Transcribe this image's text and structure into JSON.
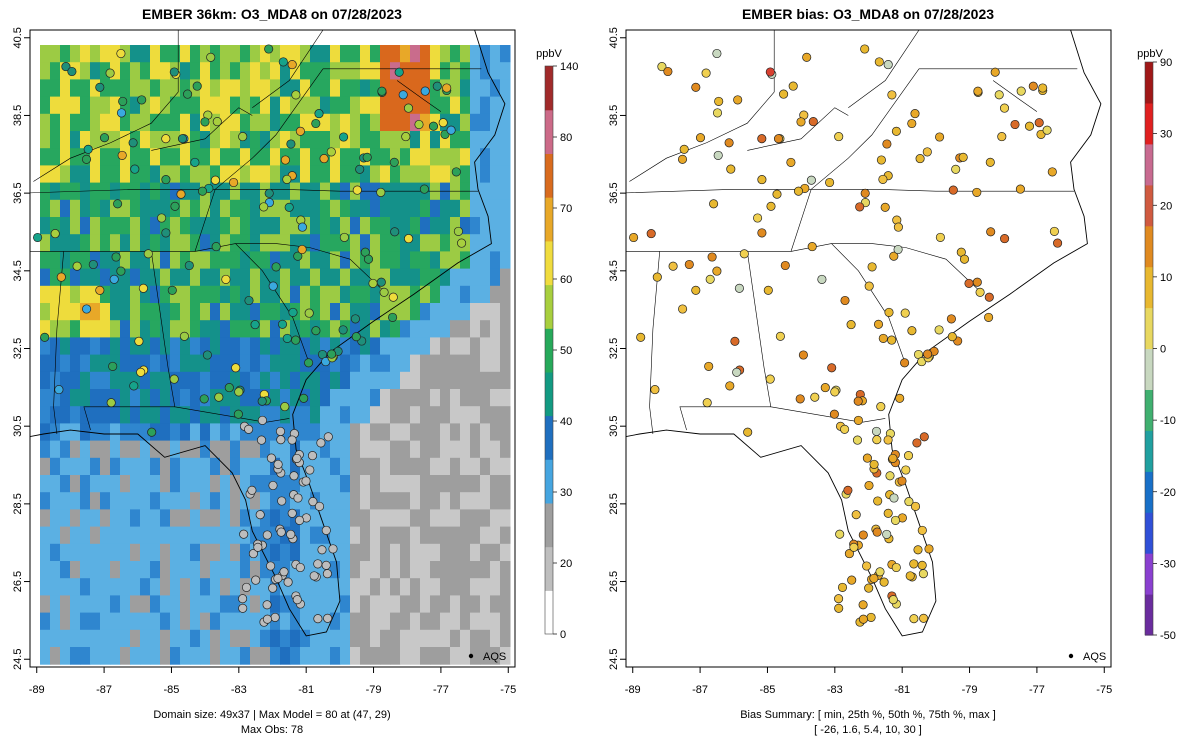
{
  "chart_data": [
    {
      "type": "heatmap",
      "title": "EMBER 36km: O3_MDA8 on 07/28/2023",
      "x_ticks": [
        "-89",
        "-87",
        "-85",
        "-83",
        "-81",
        "-79",
        "-77",
        "-75"
      ],
      "y_ticks": [
        "24.5",
        "26.5",
        "28.5",
        "30.5",
        "32.5",
        "34.5",
        "36.5",
        "38.5",
        "40.5"
      ],
      "xlim": [
        -89.2,
        -74.8
      ],
      "ylim": [
        24.3,
        40.7
      ],
      "colorbar": {
        "unit": "ppbV",
        "ticks": [
          "0",
          "20",
          "30",
          "40",
          "50",
          "60",
          "70",
          "80",
          "140"
        ],
        "colors": [
          "#ffffff",
          "#bebebe",
          "#9e9e9e",
          "#45a5e0",
          "#1f6fbf",
          "#129a82",
          "#26a95a",
          "#a8cf3e",
          "#f0dc3e",
          "#e8a828",
          "#d96b1e",
          "#cc6a88",
          "#a12a2a"
        ]
      },
      "legend": {
        "label": "AQS",
        "position": "bottom-right"
      },
      "footer_line1": "Domain size: 49x37 | Max Model = 80 at (47, 29)",
      "footer_line2": "Max Obs: 78"
    },
    {
      "type": "scatter",
      "title": "EMBER bias: O3_MDA8 on 07/28/2023",
      "x_ticks": [
        "-89",
        "-87",
        "-85",
        "-83",
        "-81",
        "-79",
        "-77",
        "-75"
      ],
      "y_ticks": [
        "24.5",
        "26.5",
        "28.5",
        "30.5",
        "32.5",
        "34.5",
        "36.5",
        "38.5",
        "40.5"
      ],
      "xlim": [
        -89.2,
        -74.8
      ],
      "ylim": [
        24.3,
        40.7
      ],
      "colorbar": {
        "unit": "ppbV",
        "ticks": [
          "-50",
          "-30",
          "-20",
          "-10",
          "0",
          "10",
          "20",
          "30",
          "90"
        ],
        "colors": [
          "#6a2c9e",
          "#8a40d0",
          "#3050d8",
          "#1870c8",
          "#20a0a0",
          "#40b070",
          "#c8d8c0",
          "#e8d860",
          "#e8b830",
          "#e08a20",
          "#d05a40",
          "#c86a90",
          "#e02020",
          "#a01818"
        ]
      },
      "legend": {
        "label": "AQS",
        "position": "bottom-right"
      },
      "footer_line1": "Bias Summary: [ min, 25th %, 50th %, 75th %, max ]",
      "footer_line2": "[ -26,   1.6,   5.4,   10,   30 ]"
    }
  ]
}
